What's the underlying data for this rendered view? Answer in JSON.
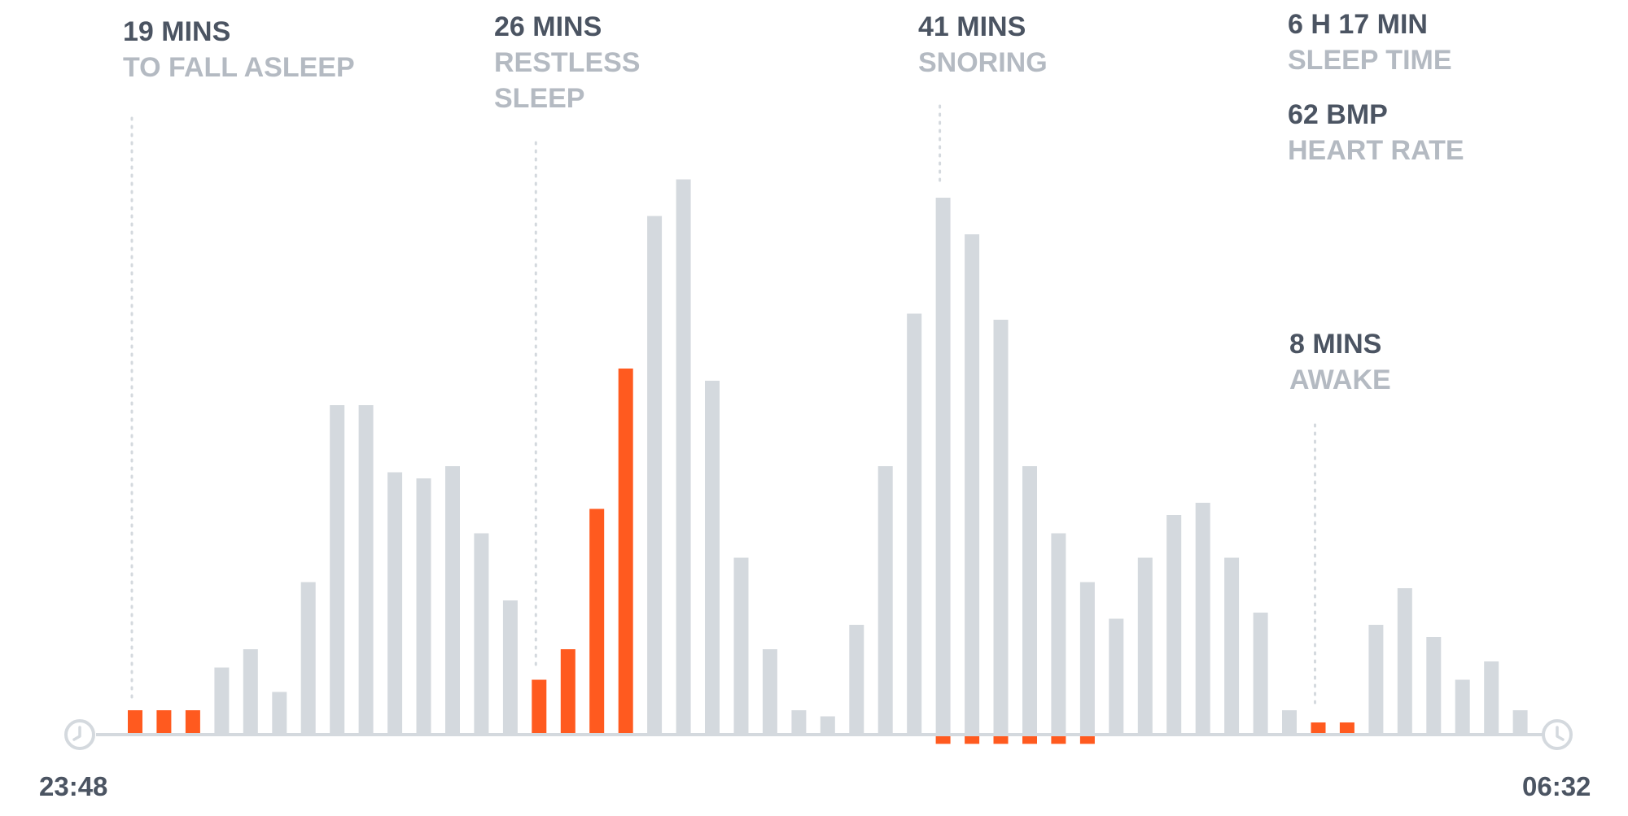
{
  "colors": {
    "bar": "#d4d9de",
    "highlight": "#ff5a1f",
    "axis": "#d4d9de",
    "dots": "#d4d9de",
    "value_text": "#4b5462",
    "label_text": "#b4bac2"
  },
  "annotations": {
    "fall_asleep": {
      "value": "19 MINS",
      "label": "TO FALL ASLEEP"
    },
    "restless": {
      "value": "26 MINS",
      "label1": "RESTLESS",
      "label2": "SLEEP"
    },
    "snoring": {
      "value": "41 MINS",
      "label": "SNORING"
    },
    "sleep_time": {
      "value": "6 H 17 MIN",
      "label": "SLEEP TIME"
    },
    "heart_rate": {
      "value": "62 BMP",
      "label": "HEART RATE"
    },
    "awake": {
      "value": "8 MINS",
      "label": "AWAKE"
    }
  },
  "time_labels": {
    "start": "23:48",
    "end": "06:32"
  },
  "icons": {
    "start": "clock-icon",
    "end": "clock-icon"
  },
  "chart_data": {
    "type": "bar",
    "title": "",
    "xlabel": "",
    "ylabel": "",
    "ylim": [
      0,
      100
    ],
    "grid": false,
    "values": [
      4,
      4,
      4,
      11,
      14,
      7,
      25,
      54,
      54,
      43,
      42,
      44,
      33,
      22,
      9,
      14,
      37,
      60,
      85,
      91,
      58,
      29,
      14,
      4,
      3,
      18,
      44,
      69,
      88,
      82,
      68,
      44,
      33,
      25,
      19,
      29,
      36,
      38,
      29,
      20,
      4,
      2,
      2,
      18,
      24,
      16,
      9,
      12,
      4
    ],
    "highlight_up": [
      0,
      1,
      2,
      14,
      15,
      16,
      17,
      41,
      42
    ],
    "below_axis": [
      {
        "index": 28,
        "value": -1.5
      },
      {
        "index": 29,
        "value": -1.5
      },
      {
        "index": 30,
        "value": -1.5
      },
      {
        "index": 31,
        "value": -1.5
      },
      {
        "index": 32,
        "value": -1.5
      },
      {
        "index": 33,
        "value": -1.5
      }
    ],
    "markers": [
      {
        "index": 0,
        "label": "19 MINS TO FALL ASLEEP"
      },
      {
        "index": 14,
        "label": "26 MINS RESTLESS SLEEP"
      },
      {
        "index": 28,
        "label": "41 MINS SNORING"
      },
      {
        "index": 41,
        "label": "8 MINS AWAKE"
      }
    ]
  }
}
